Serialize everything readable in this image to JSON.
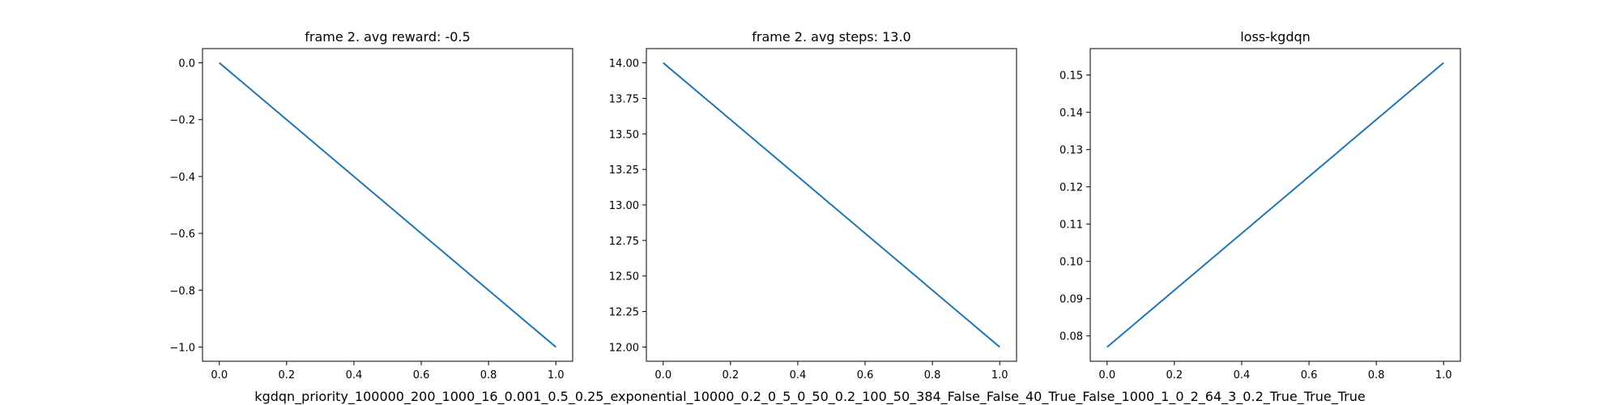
{
  "chart_data": [
    {
      "type": "line",
      "title": "frame 2. avg reward: -0.5",
      "xlabel": "",
      "ylabel": "",
      "x": [
        0,
        1
      ],
      "series": [
        {
          "values": [
            0.0,
            -1.0
          ],
          "color": "#1f77b4"
        }
      ],
      "xlim": [
        -0.05,
        1.05
      ],
      "ylim": [
        -1.05,
        0.05
      ],
      "xticks": [
        0.0,
        0.2,
        0.4,
        0.6,
        0.8,
        1.0
      ],
      "xtick_labels": [
        "0.0",
        "0.2",
        "0.4",
        "0.6",
        "0.8",
        "1.0"
      ],
      "yticks": [
        0.0,
        -0.2,
        -0.4,
        -0.6,
        -0.8,
        -1.0
      ],
      "ytick_labels": [
        "0.0",
        "−0.2",
        "−0.4",
        "−0.6",
        "−0.8",
        "−1.0"
      ],
      "grid": false
    },
    {
      "type": "line",
      "title": "frame 2. avg steps: 13.0",
      "xlabel": "",
      "ylabel": "",
      "x": [
        0,
        1
      ],
      "series": [
        {
          "values": [
            14.0,
            12.0
          ],
          "color": "#1f77b4"
        }
      ],
      "xlim": [
        -0.05,
        1.05
      ],
      "ylim": [
        11.9,
        14.1
      ],
      "xticks": [
        0.0,
        0.2,
        0.4,
        0.6,
        0.8,
        1.0
      ],
      "xtick_labels": [
        "0.0",
        "0.2",
        "0.4",
        "0.6",
        "0.8",
        "1.0"
      ],
      "yticks": [
        14.0,
        13.75,
        13.5,
        13.25,
        13.0,
        12.75,
        12.5,
        12.25,
        12.0
      ],
      "ytick_labels": [
        "14.00",
        "13.75",
        "13.50",
        "13.25",
        "13.00",
        "12.75",
        "12.50",
        "12.25",
        "12.00"
      ],
      "grid": false
    },
    {
      "type": "line",
      "title": "loss-kgdqn",
      "xlabel": "",
      "ylabel": "",
      "x": [
        0,
        1
      ],
      "series": [
        {
          "values": [
            0.077,
            0.1533
          ],
          "color": "#1f77b4"
        }
      ],
      "xlim": [
        -0.05,
        1.05
      ],
      "ylim": [
        0.0732,
        0.1571
      ],
      "xticks": [
        0.0,
        0.2,
        0.4,
        0.6,
        0.8,
        1.0
      ],
      "xtick_labels": [
        "0.0",
        "0.2",
        "0.4",
        "0.6",
        "0.8",
        "1.0"
      ],
      "yticks": [
        0.15,
        0.14,
        0.13,
        0.12,
        0.11,
        0.1,
        0.09,
        0.08
      ],
      "ytick_labels": [
        "0.15",
        "0.14",
        "0.13",
        "0.12",
        "0.11",
        "0.10",
        "0.09",
        "0.08"
      ],
      "grid": false
    }
  ],
  "figure_title": "kgdqn_priority_100000_200_1000_16_0.001_0.5_0.25_exponential_10000_0.2_0_5_0_50_0.2_100_50_384_False_False_40_True_False_1000_1_0_2_64_3_0.2_True_True_True"
}
